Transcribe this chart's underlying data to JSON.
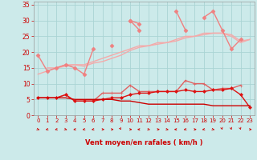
{
  "x": [
    0,
    1,
    2,
    3,
    4,
    5,
    6,
    7,
    8,
    9,
    10,
    11,
    12,
    13,
    14,
    15,
    16,
    17,
    18,
    19,
    20,
    21,
    22,
    23
  ],
  "line_upper1": [
    19,
    14,
    15,
    16,
    15,
    13,
    21,
    null,
    22,
    null,
    30,
    27,
    null,
    null,
    null,
    null,
    null,
    null,
    null,
    null,
    null,
    null,
    null,
    null
  ],
  "line_upper2": [
    null,
    null,
    null,
    null,
    null,
    null,
    null,
    null,
    null,
    null,
    30,
    29,
    null,
    null,
    null,
    33,
    27,
    null,
    31,
    33,
    27,
    21,
    24,
    null
  ],
  "line_trend": [
    13,
    14,
    15,
    16,
    16,
    16,
    17,
    18,
    19,
    20,
    21,
    22,
    22,
    23,
    23,
    24,
    25,
    25,
    26,
    26,
    26,
    25,
    23,
    24
  ],
  "line_trend2": [
    null,
    15,
    15,
    15.5,
    16,
    15.5,
    16.5,
    17,
    18,
    19,
    20.5,
    21.5,
    22,
    22.5,
    23,
    23.5,
    24.5,
    25,
    25.5,
    26,
    26,
    25.5,
    23.5,
    24
  ],
  "line_mid": [
    5.5,
    5.5,
    5.5,
    6.5,
    4.5,
    4.5,
    4.5,
    7,
    7,
    7,
    9.5,
    7.5,
    7.5,
    7.5,
    7.5,
    7.5,
    11,
    10,
    10,
    8,
    8.5,
    8.5,
    9.5,
    null
  ],
  "line_red": [
    5.5,
    5.5,
    5.5,
    6.5,
    4.5,
    4.5,
    4.5,
    5,
    5.5,
    5.5,
    6.5,
    7,
    7,
    7.5,
    7.5,
    7.5,
    8,
    7.5,
    7.5,
    8,
    8,
    8.5,
    6.5,
    2.5
  ],
  "line_flat": [
    5.5,
    5.5,
    5.5,
    5.5,
    5,
    5,
    5,
    5,
    5,
    4.5,
    4.5,
    4,
    3.5,
    3.5,
    3.5,
    3.5,
    3.5,
    3.5,
    3.5,
    3,
    3,
    3,
    3,
    3
  ],
  "bg_color": "#cceaea",
  "grid_color": "#aad4d4",
  "color_light_pink": "#f08080",
  "color_pale_pink": "#f4aaaa",
  "color_mid_red": "#e06060",
  "color_dark_red": "#cc0000",
  "color_red": "#dd1111",
  "xlabel": "Vent moyen/en rafales ( km/h )",
  "ylim": [
    0,
    36
  ],
  "xlim": [
    -0.5,
    23.5
  ],
  "yticks": [
    0,
    5,
    10,
    15,
    20,
    25,
    30,
    35
  ],
  "xticks": [
    0,
    1,
    2,
    3,
    4,
    5,
    6,
    7,
    8,
    9,
    10,
    11,
    12,
    13,
    14,
    15,
    16,
    17,
    18,
    19,
    20,
    21,
    22,
    23
  ]
}
